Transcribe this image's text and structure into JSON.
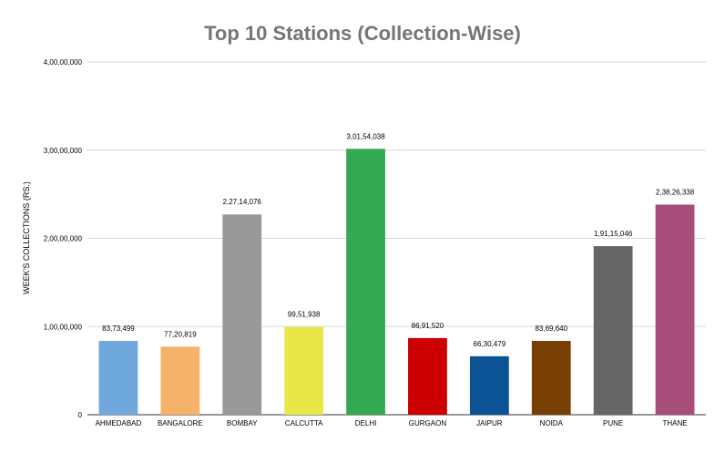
{
  "chart_data": {
    "type": "bar",
    "title": "Top 10 Stations (Collection-Wise)",
    "xlabel": "",
    "ylabel": "WEEK'S COLLECTIONS (RS.)",
    "ylim": [
      0,
      40000000
    ],
    "yticks": [
      {
        "value": 0,
        "label": "0"
      },
      {
        "value": 10000000,
        "label": "1,00,00,000"
      },
      {
        "value": 20000000,
        "label": "2,00,00,000"
      },
      {
        "value": 30000000,
        "label": "3,00,00,000"
      },
      {
        "value": 40000000,
        "label": "4,00,00,000"
      }
    ],
    "grid": true,
    "legend": "none",
    "categories": [
      "AHMEDABAD",
      "BANGALORE",
      "BOMBAY",
      "CALCUTTA",
      "DELHI",
      "GURGAON",
      "JAIPUR",
      "NOIDA",
      "PUNE",
      "THANE"
    ],
    "values": [
      8373499,
      7720819,
      22714076,
      9951938,
      30154038,
      8691520,
      6630479,
      8369640,
      19115046,
      23826338
    ],
    "data_labels": [
      "83,73,499",
      "77,20,819",
      "2,27,14,076",
      "99,51,938",
      "3,01,54,038",
      "86,91,520",
      "66,30,479",
      "83,69,640",
      "1,91,15,046",
      "2,38,26,338"
    ],
    "colors": [
      "#6fa8dc",
      "#f6b26b",
      "#999999",
      "#e9e747",
      "#34a853",
      "#cc0000",
      "#0b5394",
      "#783f04",
      "#666666",
      "#a64d79"
    ]
  }
}
